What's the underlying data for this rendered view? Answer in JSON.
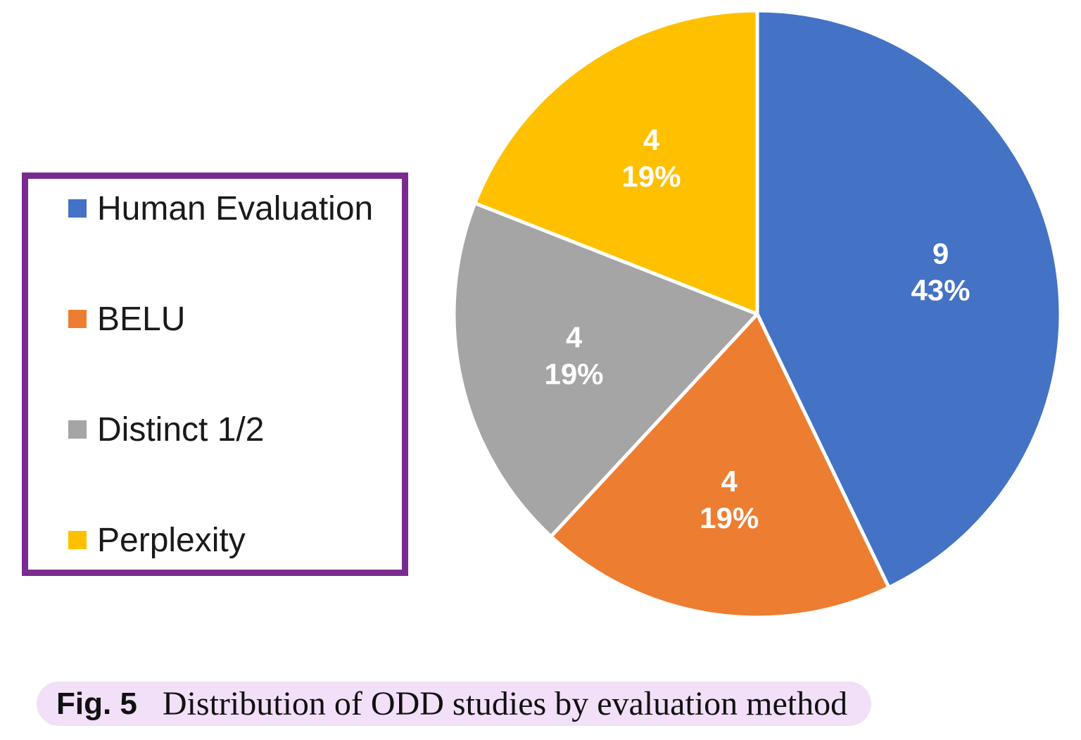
{
  "figure": {
    "caption_label": "Fig. 5",
    "caption_text": "Distribution of ODD studies by evaluation method",
    "caption_bg": "#F2DFF8"
  },
  "legend": {
    "border_color": "#7A2B8F",
    "items": [
      {
        "label": "Human Evaluation",
        "color": "#4472C4"
      },
      {
        "label": "BELU",
        "color": "#ED7D31"
      },
      {
        "label": "Distinct 1/2",
        "color": "#A5A5A5"
      },
      {
        "label": "Perplexity",
        "color": "#FFC000"
      }
    ]
  },
  "chart_data": {
    "type": "pie",
    "title": "",
    "categories": [
      "Human Evaluation",
      "BELU",
      "Distinct 1/2",
      "Perplexity"
    ],
    "values": [
      9,
      4,
      4,
      4
    ],
    "slice_labels": [
      {
        "value": "9",
        "percent": "43%"
      },
      {
        "value": "4",
        "percent": "19%"
      },
      {
        "value": "4",
        "percent": "19%"
      },
      {
        "value": "4",
        "percent": "19%"
      }
    ],
    "colors": [
      "#4472C4",
      "#ED7D31",
      "#A5A5A5",
      "#FFC000"
    ],
    "start_angle_deg": 0,
    "direction": "clockwise",
    "separator_color": "#FFFFFF",
    "label_color": "#FFFFFF",
    "legend_position": "left",
    "grid": false
  }
}
